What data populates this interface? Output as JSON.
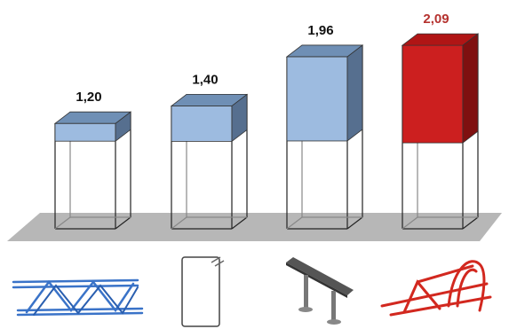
{
  "chart_data": {
    "type": "bar",
    "categories": [
      "lattice-girder",
      "stirrup",
      "support-chair",
      "red-spacer-frame"
    ],
    "values": [
      1.2,
      1.4,
      1.96,
      2.09
    ],
    "value_labels": [
      "1,20",
      "1,40",
      "1,96",
      "2,09"
    ],
    "title": "",
    "xlabel": "",
    "ylabel": "",
    "ylim": [
      0,
      2.2
    ],
    "grid": false,
    "legend": "none",
    "style": "3d-box",
    "colors": {
      "bar_default": "#9dbbe0",
      "bar_default_top": "#6f8fb5",
      "bar_default_side": "#566f8f",
      "bar_highlight": "#cc1f1f",
      "bar_highlight_top": "#b01515",
      "bar_highlight_side": "#7f1010",
      "label_default": "#111111",
      "label_highlight": "#b5322f",
      "floor": "#b7b7b7"
    },
    "category_icons": [
      "lattice-girder-icon",
      "stirrup-icon",
      "support-chair-icon",
      "spacer-frame-icon"
    ]
  }
}
